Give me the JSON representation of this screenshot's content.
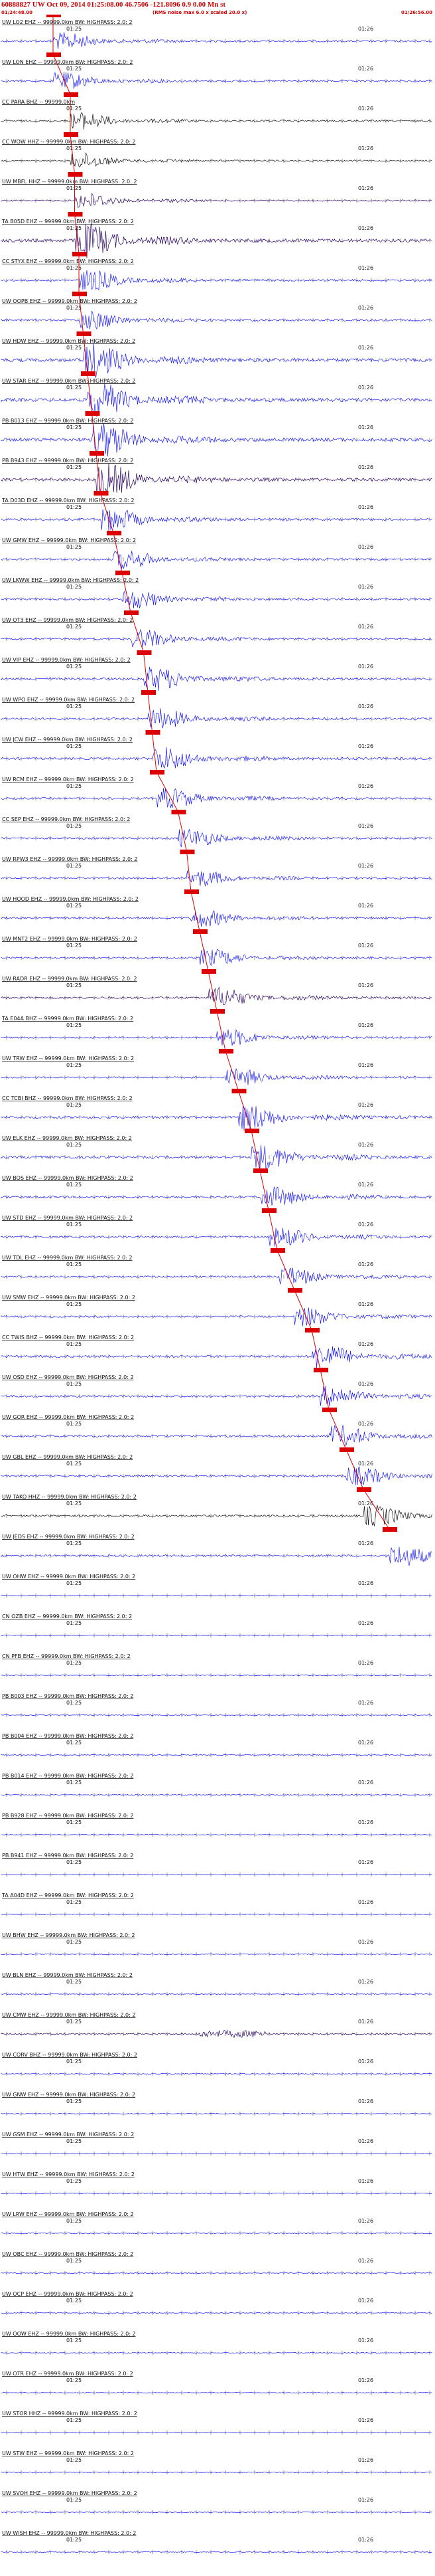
{
  "header": {
    "title": "60888827 UW Oct 09, 2014 01:25:08.00   46.7506 -121.8096  0.9 0.00 Mn st",
    "start_time": "01/24:48.00",
    "end_time": "01/26:56.00",
    "note": "(RMS noise max 6.0 x scaled 20.0 x)"
  },
  "colors": {
    "red": "#dd0000",
    "blue": "#1a1aff",
    "black": "#111111",
    "purple": "#2a0066"
  },
  "chart_data": {
    "type": "line",
    "title": "60888827 UW Oct 09, 2014 01:25:08.00   46.7506 -121.8096  0.9 0.00 Mn st",
    "x_range": [
      "01:24:48.00",
      "01:26:56.00"
    ],
    "tick_labels": {
      "left": "01:25",
      "right": "01:26"
    },
    "series": [
      {
        "label": "UW LO2 EHZ -- 99999.0km BW: HIGHPASS: 2.0: 2",
        "color": "blue",
        "amp": 0.5,
        "pick": 0.12
      },
      {
        "label": "UW LON EHZ -- 99999.0km BW: HIGHPASS: 2.0: 2",
        "color": "blue",
        "amp": 0.5,
        "pick": 0.12
      },
      {
        "label": "CC PARA BHZ -- 99999.0km",
        "color": "black",
        "amp": 0.5,
        "pick": 0.16
      },
      {
        "label": "CC WOW HHZ -- 99999.0km BW: HIGHPASS: 2.0: 2",
        "color": "black",
        "amp": 0.45,
        "pick": 0.16
      },
      {
        "label": "UW MBFL HHZ -- 99999.0km BW: HIGHPASS: 2.0: 2",
        "color": "purple",
        "amp": 0.45,
        "pick": 0.17
      },
      {
        "label": "TA B05D EHZ -- 99999.0km BW: HIGHPASS: 2.0: 2",
        "color": "purple",
        "amp": 1.0,
        "pick": 0.17
      },
      {
        "label": "CC STYX EHZ -- 99999.0km BW: HIGHPASS: 2.0: 2",
        "color": "blue",
        "amp": 0.6,
        "pick": 0.18
      },
      {
        "label": "UW OOPB EHZ -- 99999.0km BW: HIGHPASS: 2.0: 2",
        "color": "blue",
        "amp": 0.55,
        "pick": 0.18
      },
      {
        "label": "UW HDW EHZ -- 99999.0km BW: HIGHPASS: 2.0: 2",
        "color": "blue",
        "amp": 1.0,
        "pick": 0.19
      },
      {
        "label": "UW STAR EHZ -- 99999.0km BW: HIGHPASS: 2.0: 2",
        "color": "blue",
        "amp": 1.0,
        "pick": 0.2
      },
      {
        "label": "PB B013 EHZ -- 99999.0km BW: HIGHPASS: 2.0: 2",
        "color": "blue",
        "amp": 1.0,
        "pick": 0.21
      },
      {
        "label": "PB B943 EHZ -- 99999.0km BW: HIGHPASS: 2.0: 2",
        "color": "purple",
        "amp": 0.9,
        "pick": 0.22
      },
      {
        "label": "TA D03D EHZ -- 99999.0km BW: HIGHPASS: 2.0: 2",
        "color": "blue",
        "amp": 0.65,
        "pick": 0.23
      },
      {
        "label": "UW GMW EHZ -- 99999.0km BW: HIGHPASS: 2.0: 2",
        "color": "blue",
        "amp": 0.55,
        "pick": 0.26
      },
      {
        "label": "UW LKWW EHZ -- 99999.0km BW: HIGHPASS: 2.0: 2",
        "color": "blue",
        "amp": 0.55,
        "pick": 0.28
      },
      {
        "label": "UW OT3 EHZ -- 99999.0km BW: HIGHPASS: 2.0: 2",
        "color": "blue",
        "amp": 0.55,
        "pick": 0.3
      },
      {
        "label": "UW VIP EHZ -- 99999.0km BW: HIGHPASS: 2.0: 2",
        "color": "blue",
        "amp": 0.7,
        "pick": 0.33
      },
      {
        "label": "UW WPO EHZ -- 99999.0km BW: HIGHPASS: 2.0: 2",
        "color": "blue",
        "amp": 0.6,
        "pick": 0.34
      },
      {
        "label": "UW JCW EHZ -- 99999.0km BW: HIGHPASS: 2.0: 2",
        "color": "blue",
        "amp": 0.7,
        "pick": 0.35
      },
      {
        "label": "UW RCM EHZ -- 99999.0km BW: HIGHPASS: 2.0: 2",
        "color": "blue",
        "amp": 0.6,
        "pick": 0.36
      },
      {
        "label": "CC SEP EHZ -- 99999.0km BW: HIGHPASS: 2.0: 2",
        "color": "blue",
        "amp": 0.55,
        "pick": 0.41
      },
      {
        "label": "UW RPW3 EHZ -- 99999.0km BW: HIGHPASS: 2.0: 2",
        "color": "blue",
        "amp": 0.5,
        "pick": 0.43
      },
      {
        "label": "UW HOOD EHZ -- 99999.0km BW: HIGHPASS: 2.0: 2",
        "color": "blue",
        "amp": 0.5,
        "pick": 0.44
      },
      {
        "label": "UW MNT2 EHZ -- 99999.0km BW: HIGHPASS: 2.0: 2",
        "color": "blue",
        "amp": 0.5,
        "pick": 0.46
      },
      {
        "label": "UW RADR EHZ -- 99999.0km BW: HIGHPASS: 2.0: 2",
        "color": "purple",
        "amp": 0.6,
        "pick": 0.48
      },
      {
        "label": "TA E04A BHZ -- 99999.0km BW: HIGHPASS: 2.0: 2",
        "color": "blue",
        "amp": 0.5,
        "pick": 0.5
      },
      {
        "label": "UW TRW EHZ -- 99999.0km BW: HIGHPASS: 2.0: 2",
        "color": "blue",
        "amp": 0.5,
        "pick": 0.52
      },
      {
        "label": "CC TCBI BHZ -- 99999.0km BW: HIGHPASS: 2.0: 2",
        "color": "blue",
        "amp": 0.75,
        "pick": 0.55
      },
      {
        "label": "UW ELK EHZ -- 99999.0km BW: HIGHPASS: 2.0: 2",
        "color": "blue",
        "amp": 0.75,
        "pick": 0.58
      },
      {
        "label": "UW BOS EHZ -- 99999.0km BW: HIGHPASS: 2.0: 2",
        "color": "blue",
        "amp": 0.6,
        "pick": 0.6
      },
      {
        "label": "UW STD EHZ -- 99999.0km BW: HIGHPASS: 2.0: 2",
        "color": "blue",
        "amp": 0.55,
        "pick": 0.62
      },
      {
        "label": "UW TDL EHZ -- 99999.0km BW: HIGHPASS: 2.0: 2",
        "color": "blue",
        "amp": 0.55,
        "pick": 0.64
      },
      {
        "label": "UW SMW EHZ -- 99999.0km BW: HIGHPASS: 2.0: 2",
        "color": "blue",
        "amp": 0.55,
        "pick": 0.68
      },
      {
        "label": "CC TWIS BHZ -- 99999.0km BW: HIGHPASS: 2.0: 2",
        "color": "blue",
        "amp": 0.7,
        "pick": 0.72
      },
      {
        "label": "UW OSD EHZ -- 99999.0km BW: HIGHPASS: 2.0: 2",
        "color": "blue",
        "amp": 0.6,
        "pick": 0.74
      },
      {
        "label": "UW GOR EHZ -- 99999.0km BW: HIGHPASS: 2.0: 2",
        "color": "blue",
        "amp": 0.6,
        "pick": 0.76
      },
      {
        "label": "UW GBL EHZ -- 99999.0km BW: HIGHPASS: 2.0: 2",
        "color": "blue",
        "amp": 0.55,
        "pick": 0.8
      },
      {
        "label": "UW TAKO HHZ -- 99999.0km BW: HIGHPASS: 2.0: 2",
        "color": "black",
        "amp": 0.6,
        "pick": 0.84
      },
      {
        "label": "UW JEDS EHZ -- 99999.0km BW: HIGHPASS: 2.0: 2",
        "color": "blue",
        "amp": 0.6,
        "pick": 0.9
      },
      {
        "label": "UW OHW EHZ -- 99999.0km BW: HIGHPASS: 2.0: 2",
        "color": "blue",
        "amp": 0.3,
        "pick": null
      },
      {
        "label": "CN OZB EHZ -- 99999.0km BW: HIGHPASS: 2.0: 2",
        "color": "blue",
        "amp": 0.25,
        "pick": null
      },
      {
        "label": "CN PFB EHZ -- 99999.0km BW: HIGHPASS: 2.0: 2",
        "color": "blue",
        "amp": 0.25,
        "pick": null
      },
      {
        "label": "PB B003 EHZ -- 99999.0km BW: HIGHPASS: 2.0: 2",
        "color": "blue",
        "amp": 0.25,
        "pick": null
      },
      {
        "label": "PB B004 EHZ -- 99999.0km BW: HIGHPASS: 2.0: 2",
        "color": "blue",
        "amp": 0.25,
        "pick": null
      },
      {
        "label": "PB B014 EHZ -- 99999.0km BW: HIGHPASS: 2.0: 2",
        "color": "blue",
        "amp": 0.25,
        "pick": null
      },
      {
        "label": "PB B928 EHZ -- 99999.0km BW: HIGHPASS: 2.0: 2",
        "color": "blue",
        "amp": 0.25,
        "pick": null
      },
      {
        "label": "PB B941 EHZ -- 99999.0km BW: HIGHPASS: 2.0: 2",
        "color": "blue",
        "amp": 0.25,
        "pick": null
      },
      {
        "label": "TA A04D EHZ -- 99999.0km BW: HIGHPASS: 2.0: 2",
        "color": "blue",
        "amp": 0.25,
        "pick": null
      },
      {
        "label": "UW BHW EHZ -- 99999.0km BW: HIGHPASS: 2.0: 2",
        "color": "blue",
        "amp": 0.25,
        "pick": null
      },
      {
        "label": "UW BLN EHZ -- 99999.0km BW: HIGHPASS: 2.0: 2",
        "color": "blue",
        "amp": 0.25,
        "pick": null
      },
      {
        "label": "UW CMW EHZ -- 99999.0km BW: HIGHPASS: 2.0: 2",
        "color": "purple",
        "amp": 0.45,
        "pick": null
      },
      {
        "label": "UW CORV BHZ -- 99999.0km BW: HIGHPASS: 2.0: 2",
        "color": "blue",
        "amp": 0.3,
        "pick": null
      },
      {
        "label": "UW GNW EHZ -- 99999.0km BW: HIGHPASS: 2.0: 2",
        "color": "blue",
        "amp": 0.25,
        "pick": null
      },
      {
        "label": "UW GSM EHZ -- 99999.0km BW: HIGHPASS: 2.0: 2",
        "color": "blue",
        "amp": 0.25,
        "pick": null
      },
      {
        "label": "UW HTW EHZ -- 99999.0km BW: HIGHPASS: 2.0: 2",
        "color": "blue",
        "amp": 0.25,
        "pick": null
      },
      {
        "label": "UW LRW EHZ -- 99999.0km BW: HIGHPASS: 2.0: 2",
        "color": "blue",
        "amp": 0.25,
        "pick": null
      },
      {
        "label": "UW OBC EHZ -- 99999.0km BW: HIGHPASS: 2.0: 2",
        "color": "blue",
        "amp": 0.25,
        "pick": null
      },
      {
        "label": "UW OCP EHZ -- 99999.0km BW: HIGHPASS: 2.0: 2",
        "color": "blue",
        "amp": 0.25,
        "pick": null
      },
      {
        "label": "UW OOW EHZ -- 99999.0km BW: HIGHPASS: 2.0: 2",
        "color": "blue",
        "amp": 0.25,
        "pick": null
      },
      {
        "label": "UW OTR EHZ -- 99999.0km BW: HIGHPASS: 2.0: 2",
        "color": "blue",
        "amp": 0.25,
        "pick": null
      },
      {
        "label": "UW STOR HHZ -- 99999.0km BW: HIGHPASS: 2.0: 2",
        "color": "blue",
        "amp": 0.25,
        "pick": null
      },
      {
        "label": "UW STW EHZ -- 99999.0km BW: HIGHPASS: 2.0: 2",
        "color": "blue",
        "amp": 0.25,
        "pick": null
      },
      {
        "label": "UW SVOH EHZ -- 99999.0km BW: HIGHPASS: 2.0: 2",
        "color": "blue",
        "amp": 0.25,
        "pick": null
      },
      {
        "label": "UW WISH EHZ -- 99999.0km BW: HIGHPASS: 2.0: 2",
        "color": "blue",
        "amp": 0.25,
        "pick": null
      }
    ]
  }
}
